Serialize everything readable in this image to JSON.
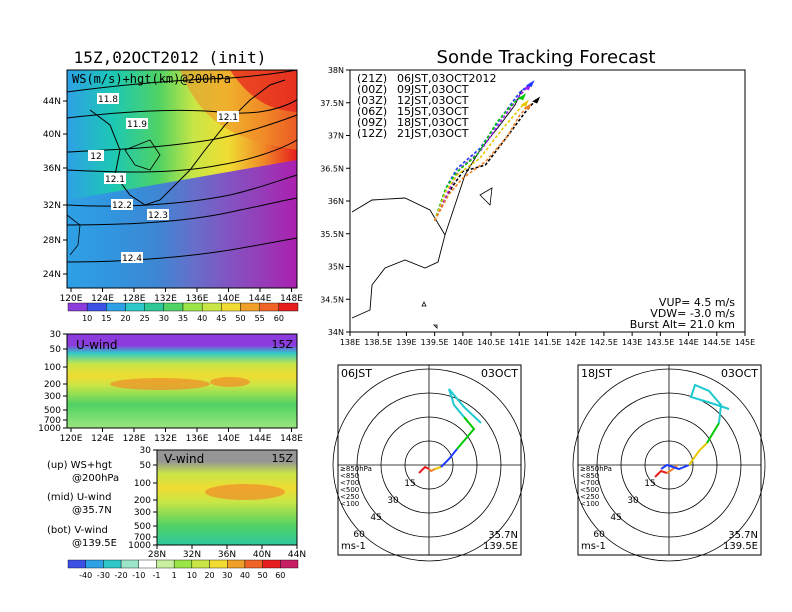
{
  "left_title": "15Z,02OCT2012 (init)",
  "right_title": "Sonde Tracking Forecast",
  "map1": {
    "label": "WS(m/s)+hgt(km)@200hPa",
    "lat_ticks": [
      "44N",
      "40N",
      "36N",
      "32N",
      "28N",
      "24N"
    ],
    "lon_ticks": [
      "120E",
      "124E",
      "128E",
      "132E",
      "136E",
      "140E",
      "144E",
      "148E"
    ],
    "contour_labels": [
      "11.8",
      "11.9",
      "12.1",
      "12",
      "12.1",
      "12.2",
      "12.3",
      "12.4"
    ]
  },
  "colorbar1": {
    "values": [
      "10",
      "15",
      "20",
      "25",
      "30",
      "35",
      "40",
      "45",
      "50",
      "55",
      "60"
    ]
  },
  "uwind": {
    "label": "U-wind",
    "time": "15Z",
    "y_ticks": [
      "30",
      "50",
      "100",
      "200",
      "300",
      "500",
      "700",
      "1000"
    ],
    "x_ticks": [
      "120E",
      "124E",
      "128E",
      "132E",
      "136E",
      "140E",
      "144E",
      "148E"
    ]
  },
  "vwind": {
    "label": "V-wind",
    "time": "15Z",
    "y_ticks": [
      "30",
      "50",
      "100",
      "200",
      "300",
      "500",
      "700",
      "1000"
    ],
    "x_ticks": [
      "28N",
      "32N",
      "36N",
      "40N",
      "44N"
    ]
  },
  "legend_notes": [
    {
      "line1": "(up) WS+hgt",
      "line2": "@200hPa"
    },
    {
      "line1": "(mid) U-wind",
      "line2": "@35.7N"
    },
    {
      "line1": "(bot) V-wind",
      "line2": "@139.5E"
    }
  ],
  "colorbar2": {
    "values": [
      "-40",
      "-30",
      "-20",
      "-10",
      "-1",
      "1",
      "10",
      "20",
      "30",
      "40",
      "50",
      "60"
    ]
  },
  "track": {
    "lat_ticks": [
      "38N",
      "37.5N",
      "37N",
      "36.5N",
      "36N",
      "35.5N",
      "35N",
      "34.5N",
      "34N"
    ],
    "lon_ticks": [
      "138E",
      "138.5E",
      "139E",
      "139.5E",
      "140E",
      "140.5E",
      "141E",
      "141.5E",
      "142E",
      "142.5E",
      "143E",
      "143.5E",
      "144E",
      "144.5E",
      "145E"
    ],
    "launches": [
      {
        "utc": "(21Z)",
        "jst": "06JST,03OCT2012",
        "color": "#000000"
      },
      {
        "utc": "(00Z)",
        "jst": "09JST,03OCT",
        "color": "#a020f0"
      },
      {
        "utc": "(03Z)",
        "jst": "12JST,03OCT",
        "color": "#1e3cff"
      },
      {
        "utc": "(06Z)",
        "jst": "15JST,03OCT",
        "color": "#00c800"
      },
      {
        "utc": "(09Z)",
        "jst": "18JST,03OCT",
        "color": "#e6c800"
      },
      {
        "utc": "(12Z)",
        "jst": "21JST,03OCT",
        "color": "#f08228"
      }
    ],
    "params": [
      "VUP= 4.5 m/s",
      "VDW= -3.0 m/s",
      "Burst Alt= 21.0 km"
    ]
  },
  "hodo1": {
    "time": "06JST",
    "date": "03OCT",
    "lat": "35.7N",
    "lon": "139.5E",
    "unit": "ms-1",
    "legend": [
      "≥850hPa",
      "<850",
      "<700",
      "<500",
      "<250",
      "<100"
    ],
    "ring_labels": [
      "15",
      "30",
      "45",
      "60"
    ]
  },
  "hodo2": {
    "time": "18JST",
    "date": "03OCT",
    "lat": "35.7N",
    "lon": "139.5E",
    "unit": "ms-1",
    "legend": [
      "≥850hPa",
      "<850",
      "<700",
      "<500",
      "<250",
      "<100"
    ],
    "ring_labels": [
      "15",
      "30",
      "45",
      "60"
    ]
  },
  "chart_data": [
    {
      "type": "heatmap",
      "title": "WS(m/s)+hgt(km)@200hPa",
      "x_range": [
        "120E",
        "149E"
      ],
      "y_range": [
        "22N",
        "47N"
      ],
      "colorbar": [
        10,
        15,
        20,
        25,
        30,
        35,
        40,
        45,
        50,
        55,
        60
      ],
      "contour_labels_km": [
        11.8,
        11.9,
        12.1,
        12,
        12.1,
        12.2,
        12.3,
        12.4
      ]
    },
    {
      "type": "heatmap",
      "title": "U-wind",
      "x_range": [
        "120E",
        "149E"
      ],
      "y_axis_hPa": [
        30,
        50,
        100,
        200,
        300,
        500,
        700,
        1000
      ]
    },
    {
      "type": "heatmap",
      "title": "V-wind",
      "x_range": [
        "28N",
        "44N"
      ],
      "y_axis_hPa": [
        30,
        50,
        100,
        200,
        300,
        500,
        700,
        1000
      ],
      "colorbar": [
        -40,
        -30,
        -20,
        -10,
        -1,
        1,
        10,
        20,
        30,
        40,
        50,
        60
      ]
    },
    {
      "type": "line",
      "title": "Sonde Tracking Forecast",
      "xlim": [
        138,
        145
      ],
      "ylim": [
        34,
        38
      ],
      "series": [
        {
          "name": "(21Z) 06JST,03OCT2012",
          "x": [
            139.5,
            139.8,
            140.0,
            140.4,
            140.8,
            141.1,
            141.3
          ],
          "y": [
            35.7,
            36.2,
            36.45,
            36.55,
            37.0,
            37.35,
            37.55
          ]
        },
        {
          "name": "(00Z) 09JST,03OCT",
          "x": [
            139.5,
            139.8,
            139.95,
            140.3,
            140.7,
            141.0,
            141.15
          ],
          "y": [
            35.7,
            36.25,
            36.5,
            36.75,
            37.25,
            37.6,
            37.75
          ]
        },
        {
          "name": "(03Z) 12JST,03OCT",
          "x": [
            139.5,
            139.7,
            139.9,
            140.3,
            140.7,
            141.0,
            141.2
          ],
          "y": [
            35.7,
            36.2,
            36.5,
            36.8,
            37.3,
            37.65,
            37.8
          ]
        },
        {
          "name": "(06Z) 15JST,03OCT",
          "x": [
            139.5,
            139.7,
            139.9,
            140.25,
            140.6,
            140.9,
            141.05
          ],
          "y": [
            35.7,
            36.2,
            36.45,
            36.7,
            37.2,
            37.5,
            37.6
          ]
        },
        {
          "name": "(09Z) 18JST,03OCT",
          "x": [
            139.5,
            139.7,
            139.9,
            140.3,
            140.7,
            141.0,
            141.1
          ],
          "y": [
            35.7,
            36.15,
            36.4,
            36.65,
            37.1,
            37.4,
            37.5
          ]
        },
        {
          "name": "(12Z) 21JST,03OCT",
          "x": [
            139.5,
            139.75,
            140.0,
            140.4,
            140.8,
            141.0,
            141.15
          ],
          "y": [
            35.7,
            36.1,
            36.35,
            36.6,
            37.0,
            37.3,
            37.45
          ]
        }
      ]
    }
  ]
}
